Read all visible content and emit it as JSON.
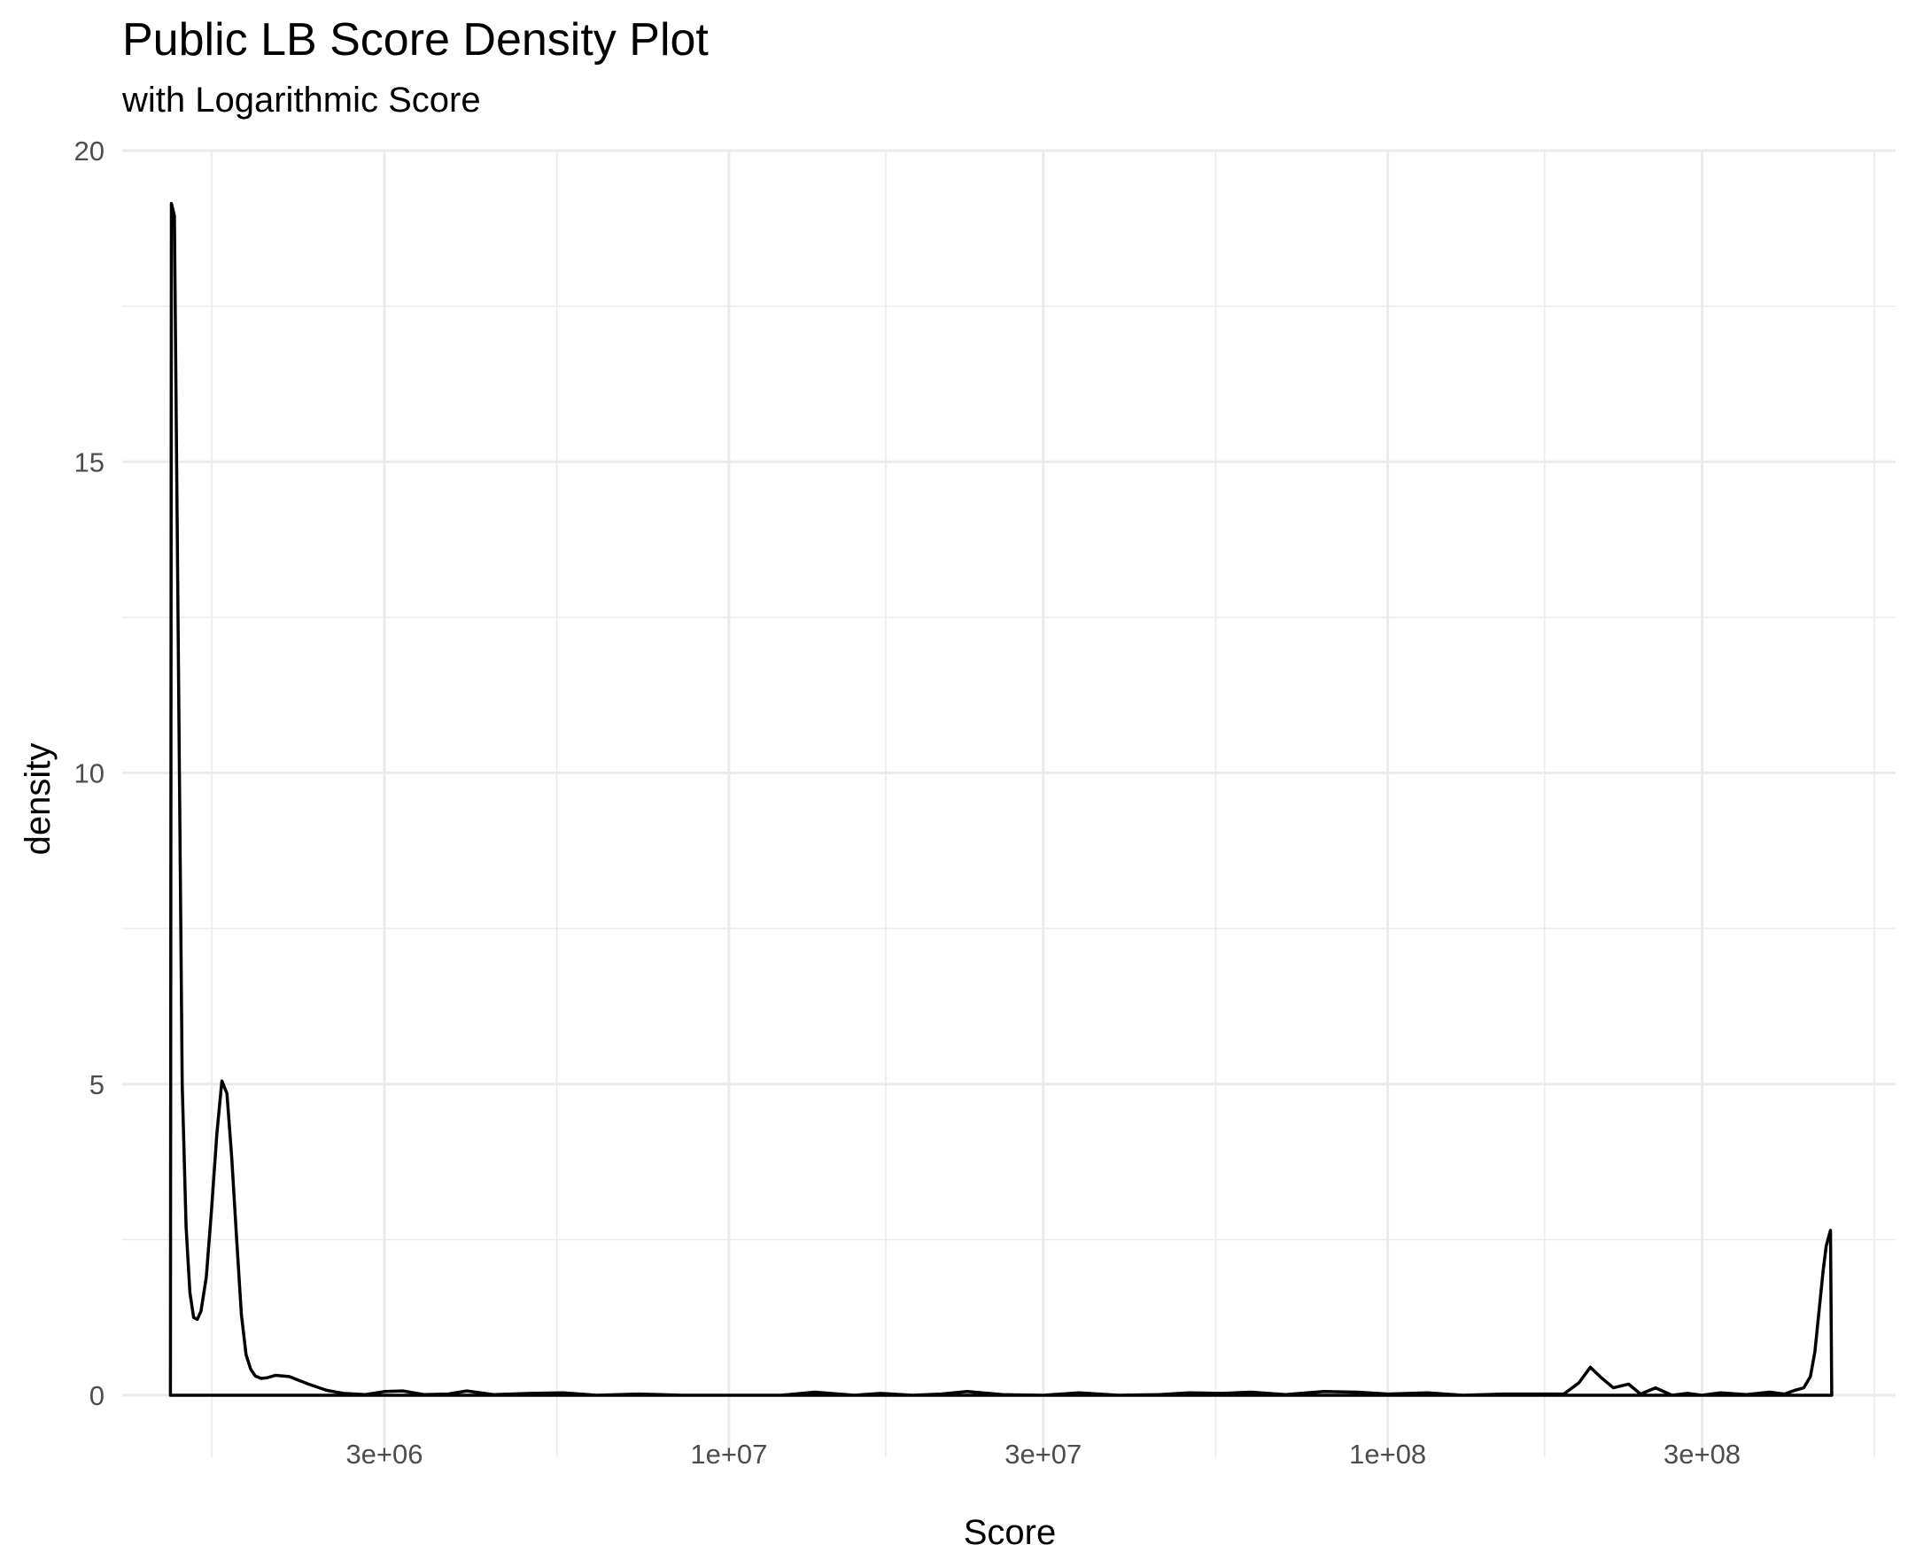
{
  "chart_data": {
    "type": "area",
    "title": "Public LB Score Density Plot",
    "subtitle": "with Logarithmic Score",
    "xlabel": "Score",
    "ylabel": "density",
    "x_scale": "log10",
    "xlim": [
      1200000,
      590000000
    ],
    "ylim": [
      0,
      20
    ],
    "x_major_ticks": [
      {
        "value": 3000000,
        "label": "3e+06"
      },
      {
        "value": 10000000,
        "label": "1e+07"
      },
      {
        "value": 30000000,
        "label": "3e+07"
      },
      {
        "value": 100000000,
        "label": "1e+08"
      },
      {
        "value": 300000000,
        "label": "3e+08"
      }
    ],
    "x_minor_ticks": [
      1640000,
      5480000,
      17300000,
      54800000,
      173000000,
      548000000
    ],
    "y_major_ticks": [
      {
        "value": 0,
        "label": "0"
      },
      {
        "value": 5,
        "label": "5"
      },
      {
        "value": 10,
        "label": "10"
      },
      {
        "value": 15,
        "label": "15"
      },
      {
        "value": 20,
        "label": "20"
      }
    ],
    "y_minor_ticks": [
      2.5,
      7.5,
      12.5,
      17.5
    ],
    "grid": true,
    "legend": "none",
    "line_color": "#000000",
    "series": [
      {
        "x": [
          1420000,
          1425000,
          1440000,
          1460000,
          1480000,
          1500000,
          1520000,
          1540000,
          1560000,
          1580000,
          1610000,
          1640000,
          1670000,
          1700000,
          1730000,
          1760000,
          1790000,
          1820000,
          1850000,
          1880000,
          1910000,
          1950000,
          1990000,
          2050000,
          2150000,
          2300000,
          2450000,
          2600000,
          2800000,
          3000000,
          3200000,
          3450000,
          3750000,
          4000000,
          4400000,
          5000000,
          5600000,
          6300000,
          7300000,
          8500000,
          9800000,
          12000000,
          13500000,
          15500000,
          17000000,
          19000000,
          21000000,
          23000000,
          26000000,
          30000000,
          34000000,
          39000000,
          45000000,
          50000000,
          56000000,
          62000000,
          70000000,
          80000000,
          90000000,
          100000000,
          115000000,
          130000000,
          150000000,
          170000000,
          185000000,
          195000000,
          203000000,
          210000000,
          220000000,
          232000000,
          242000000,
          255000000,
          270000000,
          285000000,
          300000000,
          320000000,
          350000000,
          380000000,
          400000000,
          415000000,
          428000000,
          438000000,
          445000000,
          452000000,
          458000000,
          463000000,
          467000000,
          470000000,
          472000000
        ],
        "y": [
          0,
          19.15,
          18.95,
          12.0,
          5.0,
          2.7,
          1.65,
          1.25,
          1.22,
          1.35,
          1.9,
          3.0,
          4.2,
          5.05,
          4.85,
          3.8,
          2.5,
          1.3,
          0.65,
          0.42,
          0.31,
          0.27,
          0.28,
          0.32,
          0.3,
          0.18,
          0.08,
          0.03,
          0.01,
          0.06,
          0.07,
          0.01,
          0.02,
          0.07,
          0.01,
          0.03,
          0.04,
          0.0,
          0.02,
          0.0,
          0.0,
          0.0,
          0.05,
          0.0,
          0.03,
          0.0,
          0.02,
          0.06,
          0.01,
          0.0,
          0.04,
          0.0,
          0.01,
          0.04,
          0.03,
          0.05,
          0.01,
          0.06,
          0.05,
          0.02,
          0.04,
          0.0,
          0.02,
          0.02,
          0.02,
          0.2,
          0.45,
          0.3,
          0.12,
          0.18,
          0.02,
          0.12,
          0.0,
          0.03,
          0.0,
          0.04,
          0.01,
          0.05,
          0.02,
          0.08,
          0.12,
          0.3,
          0.7,
          1.4,
          2.0,
          2.4,
          2.55,
          2.65,
          0
        ]
      }
    ]
  }
}
